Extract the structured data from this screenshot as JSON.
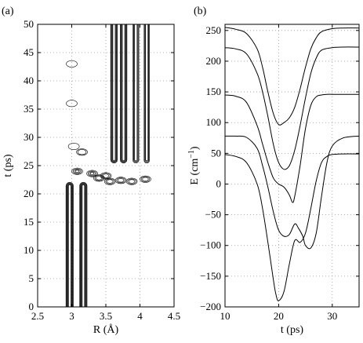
{
  "chart_data": [
    {
      "id": "a",
      "type": "contour",
      "panel_label": "(a)",
      "xlabel": "R (Å)",
      "ylabel": "t (ps)",
      "xlim": [
        2.5,
        4.5
      ],
      "ylim": [
        0,
        50
      ],
      "xticks": [
        2.5,
        3,
        3.5,
        4,
        4.5
      ],
      "xtick_labels": [
        "2.5",
        "3",
        "3.5",
        "4",
        "4.5"
      ],
      "yticks": [
        0,
        5,
        10,
        15,
        20,
        25,
        30,
        35,
        40,
        45,
        50
      ],
      "ytick_labels": [
        "0",
        "5",
        "10",
        "15",
        "20",
        "25",
        "30",
        "35",
        "40",
        "45",
        "50"
      ],
      "grid": true,
      "features": [
        {
          "name": "initial-lobe-1",
          "R": 2.97,
          "t_range": [
            0,
            21.5
          ],
          "width": 0.045,
          "levels": 6
        },
        {
          "name": "initial-lobe-2",
          "R": 3.17,
          "t_range": [
            0,
            21.5
          ],
          "width": 0.045,
          "levels": 6
        },
        {
          "name": "final-lobe-1",
          "R": 3.62,
          "t_range": [
            26,
            50
          ],
          "width": 0.04,
          "levels": 5
        },
        {
          "name": "final-lobe-2",
          "R": 3.76,
          "t_range": [
            26,
            50
          ],
          "width": 0.04,
          "levels": 5
        },
        {
          "name": "final-lobe-3",
          "R": 3.94,
          "t_range": [
            26,
            50
          ],
          "width": 0.035,
          "levels": 4
        },
        {
          "name": "final-lobe-4",
          "R": 4.1,
          "t_range": [
            26,
            50
          ],
          "width": 0.03,
          "levels": 4
        }
      ],
      "islands": [
        {
          "R": 3.08,
          "t": 24.0,
          "levels": 4
        },
        {
          "R": 3.3,
          "t": 23.6,
          "levels": 4
        },
        {
          "R": 3.4,
          "t": 22.8,
          "levels": 3
        },
        {
          "R": 3.5,
          "t": 23.2,
          "levels": 3
        },
        {
          "R": 3.56,
          "t": 22.2,
          "levels": 3
        },
        {
          "R": 3.72,
          "t": 22.4,
          "levels": 3
        },
        {
          "R": 3.88,
          "t": 22.2,
          "levels": 3
        },
        {
          "R": 4.08,
          "t": 22.6,
          "levels": 3
        },
        {
          "R": 3.15,
          "t": 27.4,
          "levels": 2
        },
        {
          "R": 3.03,
          "t": 28.4,
          "levels": 1
        },
        {
          "R": 3.0,
          "t": 43.0,
          "levels": 1
        },
        {
          "R": 3.0,
          "t": 36.0,
          "levels": 1
        }
      ]
    },
    {
      "id": "b",
      "type": "line",
      "panel_label": "(b)",
      "xlabel": "t (ps)",
      "ylabel_main": "E (cm",
      "ylabel_sup": "−1",
      "ylabel_close": ")",
      "xlim": [
        10,
        35
      ],
      "ylim": [
        -200,
        260
      ],
      "xticks": [
        10,
        20,
        30
      ],
      "xtick_labels": [
        "10",
        "20",
        "30"
      ],
      "yticks": [
        -200,
        -150,
        -100,
        -50,
        0,
        50,
        100,
        150,
        200,
        250
      ],
      "ytick_labels": [
        "−200",
        "−150",
        "−100",
        "−50",
        "0",
        "50",
        "100",
        "150",
        "200",
        "250"
      ],
      "grid": true,
      "series": [
        {
          "x": [
            10,
            12,
            14,
            16,
            17,
            18,
            19,
            20,
            21,
            22,
            23,
            24,
            25,
            26,
            27,
            28,
            30,
            32,
            35
          ],
          "y": [
            255,
            252,
            245,
            220,
            190,
            150,
            115,
            97,
            100,
            108,
            125,
            155,
            190,
            220,
            238,
            248,
            253,
            254,
            254
          ]
        },
        {
          "x": [
            10,
            12,
            14,
            16,
            17,
            18,
            19,
            20,
            21,
            22,
            23,
            24,
            25,
            26,
            27,
            28,
            30,
            32,
            35
          ],
          "y": [
            222,
            220,
            212,
            180,
            150,
            110,
            65,
            35,
            24,
            30,
            55,
            95,
            140,
            180,
            205,
            218,
            222,
            223,
            223
          ]
        },
        {
          "x": [
            10,
            12,
            14,
            16,
            17,
            18,
            19,
            20,
            21,
            22,
            22.6,
            23,
            24,
            25,
            26,
            27,
            28,
            29,
            30,
            32,
            35
          ],
          "y": [
            145,
            143,
            133,
            95,
            65,
            35,
            10,
            0,
            -5,
            -18,
            -30,
            -20,
            30,
            90,
            128,
            142,
            145,
            146,
            146,
            146,
            146
          ]
        },
        {
          "x": [
            10,
            12,
            14,
            16,
            17,
            18,
            19,
            20,
            21,
            22,
            23,
            23.7,
            24.5,
            25,
            26,
            27,
            28,
            29,
            30,
            32,
            35
          ],
          "y": [
            78,
            78,
            76,
            58,
            30,
            -5,
            -45,
            -75,
            -85,
            -82,
            -65,
            -72,
            -85,
            -100,
            -104,
            -80,
            -20,
            35,
            62,
            75,
            78
          ]
        },
        {
          "x": [
            10,
            12,
            14,
            16,
            17,
            18,
            19,
            19.5,
            20,
            21,
            22,
            23,
            24,
            25,
            26,
            27,
            28,
            29,
            30,
            32,
            35
          ],
          "y": [
            48,
            45,
            35,
            0,
            -40,
            -95,
            -155,
            -180,
            -190,
            -175,
            -130,
            -92,
            -95,
            -80,
            -40,
            5,
            35,
            45,
            48,
            49,
            49
          ]
        }
      ]
    }
  ]
}
